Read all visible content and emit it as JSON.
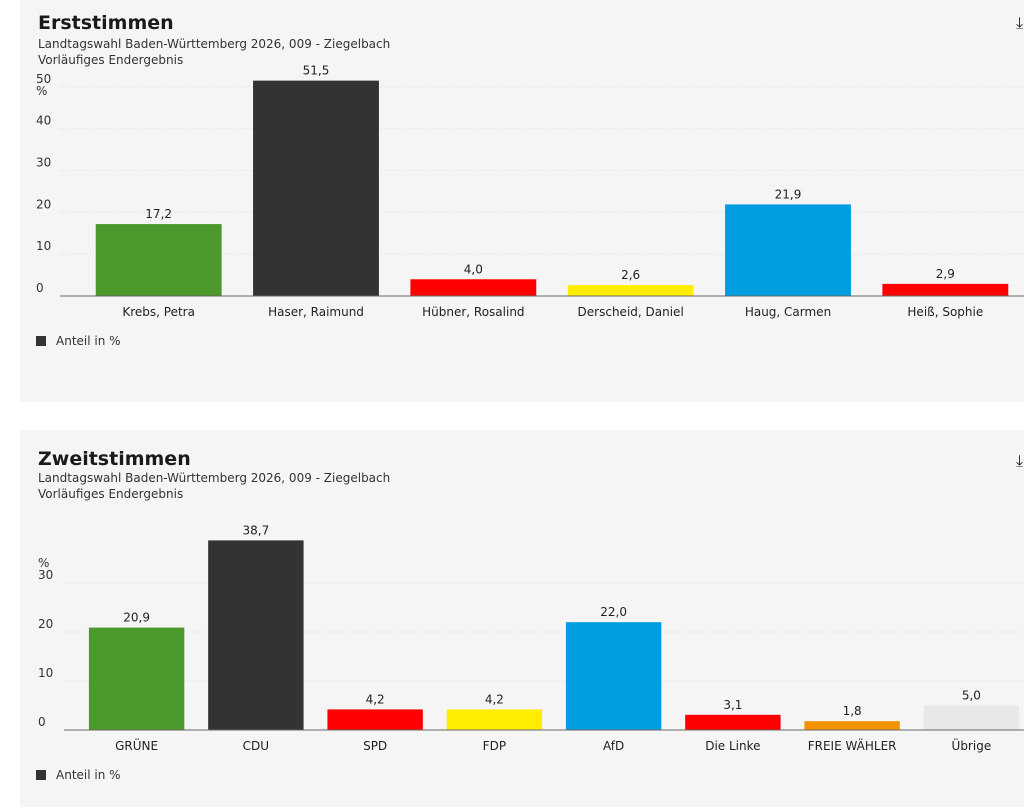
{
  "chart_data": [
    {
      "type": "bar",
      "title": "Erststimmen",
      "subtitle": "Landtagswahl Baden-Württemberg 2026, 009 - Ziegelbach",
      "subtitle2": "Vorläufiges Endergebnis",
      "ylabel": "%",
      "ylim": [
        0,
        55
      ],
      "yticks": [
        0,
        10,
        20,
        30,
        40,
        50
      ],
      "grid": true,
      "categories": [
        "Krebs, Petra",
        "Haser, Raimund",
        "Hübner, Rosalind",
        "Derscheid, Daniel",
        "Haug, Carmen",
        "Heiß, Sophie"
      ],
      "values": [
        17.2,
        51.5,
        4.0,
        2.6,
        21.9,
        2.9
      ],
      "value_labels": [
        "17,2",
        "51,5",
        "4,0",
        "2,6",
        "21,9",
        "2,9"
      ],
      "colors": [
        "#4b9a2b",
        "#333333",
        "#ff0000",
        "#ffee00",
        "#009ee0",
        "#ff0000"
      ],
      "legend": {
        "label": "Anteil in %",
        "color": "#333333",
        "position": "bottom-left"
      }
    },
    {
      "type": "bar",
      "title": "Zweitstimmen",
      "subtitle": "Landtagswahl Baden-Württemberg 2026, 009 - Ziegelbach",
      "subtitle2": "Vorläufiges Endergebnis",
      "ylabel": "%",
      "ylim": [
        0,
        40
      ],
      "yticks": [
        0,
        10,
        20,
        30
      ],
      "grid": true,
      "categories": [
        "GRÜNE",
        "CDU",
        "SPD",
        "FDP",
        "AfD",
        "Die Linke",
        "FREIE WÄHLER",
        "Übrige"
      ],
      "values": [
        20.9,
        38.7,
        4.2,
        4.2,
        22.0,
        3.1,
        1.8,
        5.0
      ],
      "value_labels": [
        "20,9",
        "38,7",
        "4,2",
        "4,2",
        "22,0",
        "3,1",
        "1,8",
        "5,0"
      ],
      "colors": [
        "#4b9a2b",
        "#333333",
        "#ff0000",
        "#ffee00",
        "#009ee0",
        "#ff0000",
        "#f39200",
        "#e8e8e8"
      ],
      "legend": {
        "label": "Anteil in %",
        "color": "#333333",
        "position": "bottom-left"
      }
    }
  ]
}
